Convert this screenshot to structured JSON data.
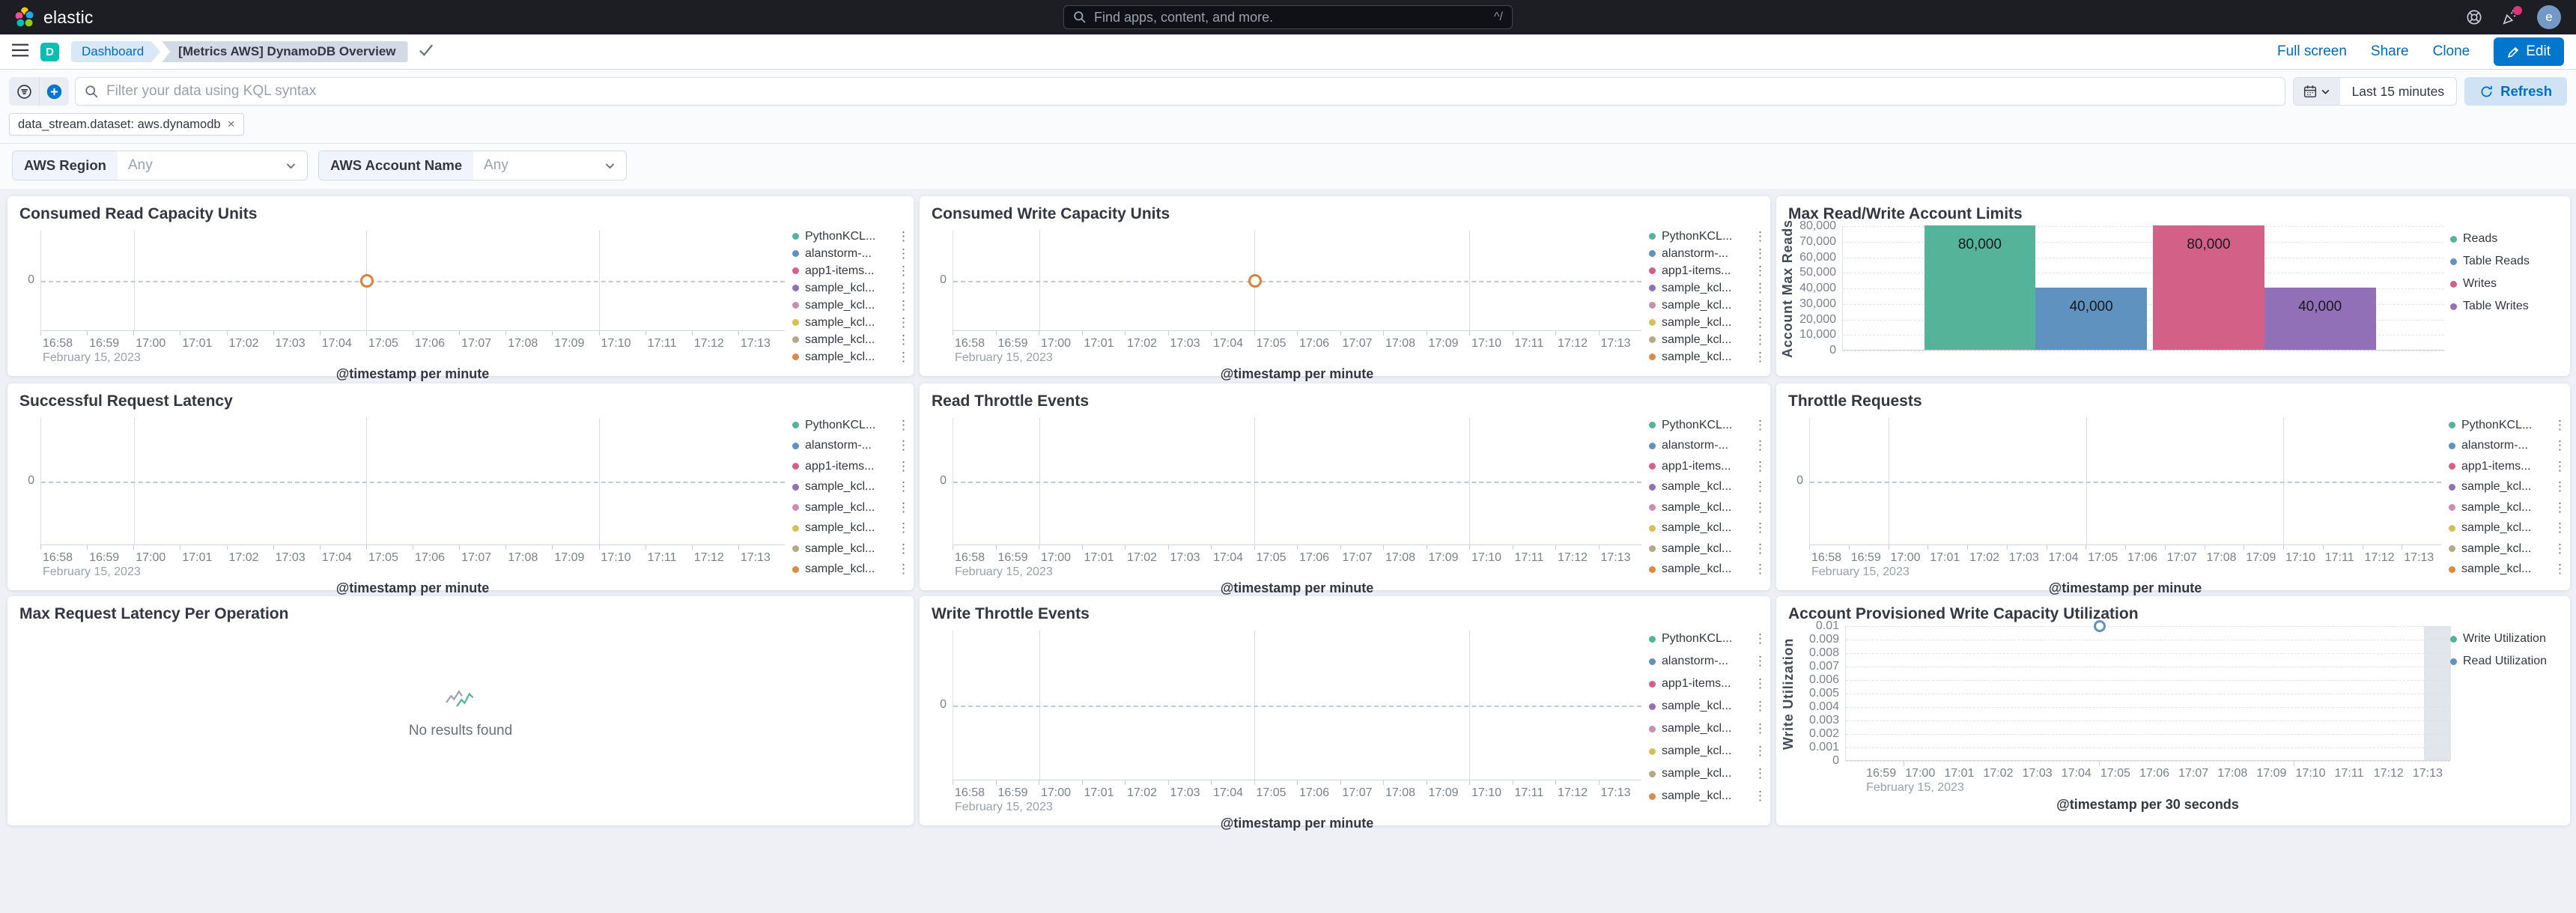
{
  "colors": {
    "primary": "#0077CC",
    "link": "#006BB8",
    "header_bg": "#1D1E24",
    "dashboard_bg": "#EEF0F6",
    "panel_bg": "#FFFFFF",
    "badge_accent": "#DD357C",
    "series_palette": [
      "#54B399",
      "#6092C0",
      "#D36086",
      "#9170B8",
      "#CA8EAE",
      "#D6BF57",
      "#B9A888",
      "#DA8B45"
    ]
  },
  "icons": {
    "elastic-logo": "colored-circle-cluster",
    "search-icon": "magnifier",
    "help-icon": "life-buoy",
    "news-icon": "party-popper-with-dot",
    "menu-icon": "hamburger",
    "dashboard-app-icon": "letter-D-tile",
    "saved-check-icon": "checkmark",
    "edit-icon": "pencil",
    "saved-query-icon": "filter-in-circle",
    "add-filter-icon": "plus-in-circle",
    "calendar-icon": "calendar",
    "chevron-down-icon": "chevron-down",
    "refresh-icon": "circular-arrow",
    "legend-menu-icon": "vertical-dots",
    "no-results-icon": "zigzag-lines"
  },
  "header": {
    "logo_text": "elastic",
    "search_placeholder": "Find apps, content, and more.",
    "search_shortcut": "^/",
    "avatar_initial": "e"
  },
  "toolbar": {
    "breadcrumb_root": "Dashboard",
    "breadcrumb_current": "[Metrics AWS] DynamoDB Overview",
    "links": [
      "Full screen",
      "Share",
      "Clone"
    ],
    "edit_label": "Edit"
  },
  "query": {
    "kql_placeholder": "Filter your data using KQL syntax",
    "filter_pill": "data_stream.dataset: aws.dynamodb",
    "filter_remove": "×",
    "time_range": "Last 15 minutes",
    "refresh_label": "Refresh"
  },
  "controls": {
    "items": [
      {
        "label": "AWS Region",
        "value": "Any"
      },
      {
        "label": "AWS Account Name",
        "value": "Any"
      }
    ]
  },
  "panels": [
    {
      "id": "consumed-read-capacity-units",
      "title": "Consumed Read Capacity Units",
      "type": "timeline",
      "legend_menus": true,
      "chart_data": {
        "type": "line",
        "xlabel": "@timestamp per minute",
        "date_label": "February 15, 2023",
        "y_zero_label": "0",
        "x_ticks": [
          "16:58",
          "16:59",
          "17:00",
          "17:01",
          "17:02",
          "17:03",
          "17:04",
          "17:05",
          "17:06",
          "17:07",
          "17:08",
          "17:09",
          "17:10",
          "17:11",
          "17:12",
          "17:13"
        ],
        "gridline_tick_indices": [
          2,
          7,
          12
        ],
        "points": [
          {
            "time": "17:05",
            "value": 0,
            "color": "#D6823F",
            "series": "sample_kcl..."
          }
        ],
        "series": [
          {
            "name": "PythonKCL...",
            "color": "#54B399"
          },
          {
            "name": "alanstorm-...",
            "color": "#6092C0"
          },
          {
            "name": "app1-items...",
            "color": "#D36086"
          },
          {
            "name": "sample_kcl...",
            "color": "#9170B8"
          },
          {
            "name": "sample_kcl...",
            "color": "#CA8EAE"
          },
          {
            "name": "sample_kcl...",
            "color": "#D6BF57"
          },
          {
            "name": "sample_kcl...",
            "color": "#B9A888"
          },
          {
            "name": "sample_kcl...",
            "color": "#DA8B45"
          }
        ]
      }
    },
    {
      "id": "consumed-write-capacity-units",
      "title": "Consumed Write Capacity Units",
      "type": "timeline",
      "legend_menus": true,
      "chart_data": {
        "type": "line",
        "xlabel": "@timestamp per minute",
        "date_label": "February 15, 2023",
        "y_zero_label": "0",
        "x_ticks": [
          "16:58",
          "16:59",
          "17:00",
          "17:01",
          "17:02",
          "17:03",
          "17:04",
          "17:05",
          "17:06",
          "17:07",
          "17:08",
          "17:09",
          "17:10",
          "17:11",
          "17:12",
          "17:13"
        ],
        "gridline_tick_indices": [
          2,
          7,
          12
        ],
        "points": [
          {
            "time": "17:05",
            "value": 0,
            "color": "#D6823F",
            "series": "sample_kcl..."
          }
        ],
        "series": [
          {
            "name": "PythonKCL...",
            "color": "#54B399"
          },
          {
            "name": "alanstorm-...",
            "color": "#6092C0"
          },
          {
            "name": "app1-items...",
            "color": "#D36086"
          },
          {
            "name": "sample_kcl...",
            "color": "#9170B8"
          },
          {
            "name": "sample_kcl...",
            "color": "#CA8EAE"
          },
          {
            "name": "sample_kcl...",
            "color": "#D6BF57"
          },
          {
            "name": "sample_kcl...",
            "color": "#B9A888"
          },
          {
            "name": "sample_kcl...",
            "color": "#DA8B45"
          }
        ]
      }
    },
    {
      "id": "max-read-write-account-limits",
      "title": "Max Read/Write Account Limits",
      "type": "bar",
      "legend_menus": false,
      "chart_data": {
        "type": "bar",
        "ylabel": "Account Max Reads",
        "ylim": [
          0,
          80000
        ],
        "categories": [
          "Reads",
          "Table Reads",
          "Writes",
          "Table Writes"
        ],
        "values": [
          80000,
          40000,
          80000,
          40000
        ],
        "value_labels": [
          "80,000",
          "40,000",
          "80,000",
          "40,000"
        ],
        "colors": [
          "#54B399",
          "#6092C0",
          "#D36086",
          "#9170B8"
        ],
        "bar_x_fracs": [
          [
            0.135,
            0.32
          ],
          [
            0.32,
            0.505
          ],
          [
            0.515,
            0.7
          ],
          [
            0.7,
            0.885
          ]
        ],
        "y_ticks": [
          "0",
          "10,000",
          "20,000",
          "30,000",
          "40,000",
          "50,000",
          "60,000",
          "70,000",
          "80,000"
        ],
        "series": [
          {
            "name": "Reads",
            "color": "#54B399"
          },
          {
            "name": "Table Reads",
            "color": "#6092C0"
          },
          {
            "name": "Writes",
            "color": "#D36086"
          },
          {
            "name": "Table Writes",
            "color": "#9170B8"
          }
        ]
      }
    },
    {
      "id": "successful-request-latency",
      "title": "Successful Request Latency",
      "type": "timeline",
      "legend_menus": true,
      "chart_data": {
        "type": "line",
        "xlabel": "@timestamp per minute",
        "date_label": "February 15, 2023",
        "y_zero_label": "0",
        "x_ticks": [
          "16:58",
          "16:59",
          "17:00",
          "17:01",
          "17:02",
          "17:03",
          "17:04",
          "17:05",
          "17:06",
          "17:07",
          "17:08",
          "17:09",
          "17:10",
          "17:11",
          "17:12",
          "17:13"
        ],
        "gridline_tick_indices": [
          2,
          7,
          12
        ],
        "points": [],
        "series": [
          {
            "name": "PythonKCL...",
            "color": "#54B399"
          },
          {
            "name": "alanstorm-...",
            "color": "#6092C0"
          },
          {
            "name": "app1-items...",
            "color": "#D36086"
          },
          {
            "name": "sample_kcl...",
            "color": "#9170B8"
          },
          {
            "name": "sample_kcl...",
            "color": "#CA8EAE"
          },
          {
            "name": "sample_kcl...",
            "color": "#D6BF57"
          },
          {
            "name": "sample_kcl...",
            "color": "#B9A888"
          },
          {
            "name": "sample_kcl...",
            "color": "#DA8B45"
          }
        ]
      }
    },
    {
      "id": "read-throttle-events",
      "title": "Read Throttle Events",
      "type": "timeline",
      "legend_menus": true,
      "chart_data": {
        "type": "line",
        "xlabel": "@timestamp per minute",
        "date_label": "February 15, 2023",
        "y_zero_label": "0",
        "x_ticks": [
          "16:58",
          "16:59",
          "17:00",
          "17:01",
          "17:02",
          "17:03",
          "17:04",
          "17:05",
          "17:06",
          "17:07",
          "17:08",
          "17:09",
          "17:10",
          "17:11",
          "17:12",
          "17:13"
        ],
        "gridline_tick_indices": [
          2,
          7,
          12
        ],
        "points": [],
        "series": [
          {
            "name": "PythonKCL...",
            "color": "#54B399"
          },
          {
            "name": "alanstorm-...",
            "color": "#6092C0"
          },
          {
            "name": "app1-items...",
            "color": "#D36086"
          },
          {
            "name": "sample_kcl...",
            "color": "#9170B8"
          },
          {
            "name": "sample_kcl...",
            "color": "#CA8EAE"
          },
          {
            "name": "sample_kcl...",
            "color": "#D6BF57"
          },
          {
            "name": "sample_kcl...",
            "color": "#B9A888"
          },
          {
            "name": "sample_kcl...",
            "color": "#DA8B45"
          }
        ]
      }
    },
    {
      "id": "throttle-requests",
      "title": "Throttle Requests",
      "type": "timeline",
      "legend_menus": true,
      "chart_data": {
        "type": "line",
        "xlabel": "@timestamp per minute",
        "date_label": "February 15, 2023",
        "y_zero_label": "0",
        "x_ticks": [
          "16:58",
          "16:59",
          "17:00",
          "17:01",
          "17:02",
          "17:03",
          "17:04",
          "17:05",
          "17:06",
          "17:07",
          "17:08",
          "17:09",
          "17:10",
          "17:11",
          "17:12",
          "17:13"
        ],
        "gridline_tick_indices": [
          2,
          7,
          12
        ],
        "points": [],
        "series": [
          {
            "name": "PythonKCL...",
            "color": "#54B399"
          },
          {
            "name": "alanstorm-...",
            "color": "#6092C0"
          },
          {
            "name": "app1-items...",
            "color": "#D36086"
          },
          {
            "name": "sample_kcl...",
            "color": "#9170B8"
          },
          {
            "name": "sample_kcl...",
            "color": "#CA8EAE"
          },
          {
            "name": "sample_kcl...",
            "color": "#D6BF57"
          },
          {
            "name": "sample_kcl...",
            "color": "#B9A888"
          },
          {
            "name": "sample_kcl...",
            "color": "#DA8B45"
          }
        ]
      }
    },
    {
      "id": "max-request-latency-per-operation",
      "title": "Max Request Latency Per Operation",
      "type": "empty",
      "message": "No results found"
    },
    {
      "id": "write-throttle-events",
      "title": "Write Throttle Events",
      "type": "timeline",
      "legend_menus": true,
      "chart_data": {
        "type": "line",
        "xlabel": "@timestamp per minute",
        "date_label": "February 15, 2023",
        "y_zero_label": "0",
        "x_ticks": [
          "16:58",
          "16:59",
          "17:00",
          "17:01",
          "17:02",
          "17:03",
          "17:04",
          "17:05",
          "17:06",
          "17:07",
          "17:08",
          "17:09",
          "17:10",
          "17:11",
          "17:12",
          "17:13"
        ],
        "gridline_tick_indices": [
          2,
          7,
          12
        ],
        "points": [],
        "series": [
          {
            "name": "PythonKCL...",
            "color": "#54B399"
          },
          {
            "name": "alanstorm-...",
            "color": "#6092C0"
          },
          {
            "name": "app1-items...",
            "color": "#D36086"
          },
          {
            "name": "sample_kcl...",
            "color": "#9170B8"
          },
          {
            "name": "sample_kcl...",
            "color": "#CA8EAE"
          },
          {
            "name": "sample_kcl...",
            "color": "#D6BF57"
          },
          {
            "name": "sample_kcl...",
            "color": "#B9A888"
          },
          {
            "name": "sample_kcl...",
            "color": "#DA8B45"
          }
        ]
      }
    },
    {
      "id": "account-provisioned-write-capacity-utilization",
      "title": "Account Provisioned Write Capacity Utilization",
      "type": "utilization",
      "chart_data": {
        "type": "line",
        "ylabel": "Write Utilization",
        "xlabel": "@timestamp per 30 seconds",
        "date_label": "February 15, 2023",
        "ylim": [
          0,
          0.01
        ],
        "y_ticks": [
          "0",
          "0.001",
          "0.002",
          "0.003",
          "0.004",
          "0.005",
          "0.006",
          "0.007",
          "0.008",
          "0.009",
          "0.01"
        ],
        "x_ticks": [
          "16:59",
          "17:00",
          "17:01",
          "17:02",
          "17:03",
          "17:04",
          "17:05",
          "17:06",
          "17:07",
          "17:08",
          "17:09",
          "17:10",
          "17:11",
          "17:12",
          "17:13"
        ],
        "tick_mark_indices": [
          1,
          6,
          11
        ],
        "points": [
          {
            "time": "17:04:45",
            "x_frac": 0.42,
            "value": 0.01,
            "color": "#6092C0",
            "series": "Read Utilization"
          }
        ],
        "partial_bucket_band_frac": [
          0.955,
          1.0
        ],
        "series": [
          {
            "name": "Write Utilization",
            "color": "#54B399"
          },
          {
            "name": "Read Utilization",
            "color": "#6092C0"
          }
        ]
      }
    }
  ]
}
